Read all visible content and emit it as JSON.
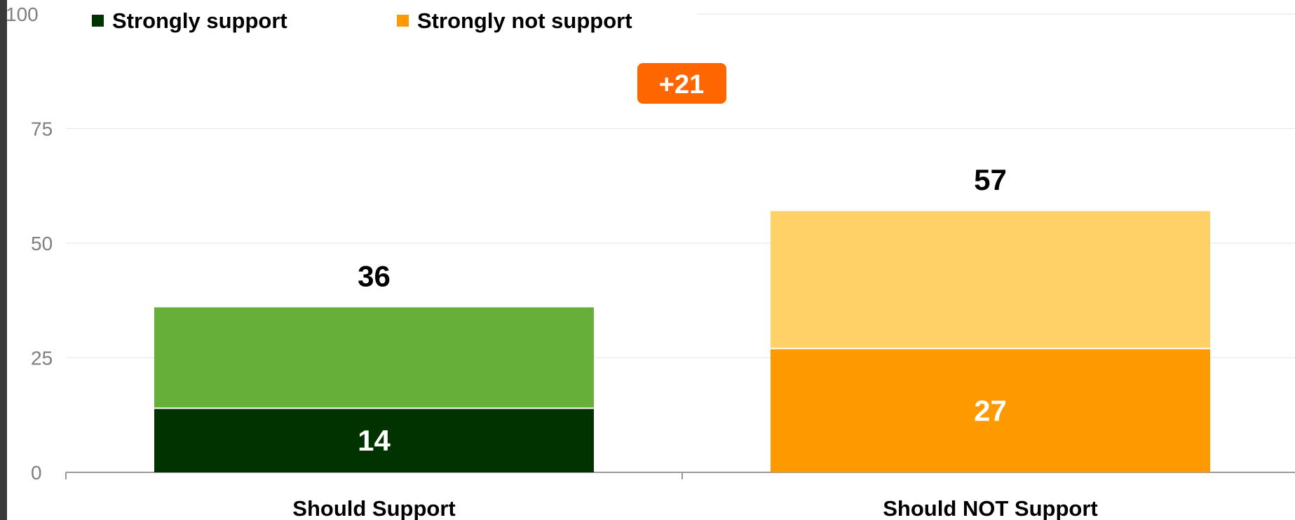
{
  "chart_data": {
    "type": "bar",
    "stacked": true,
    "categories": [
      "Should Support",
      "Should NOT Support"
    ],
    "totals": [
      36,
      57
    ],
    "strong_values": [
      14,
      27
    ],
    "strong_labels": [
      "14",
      "27"
    ],
    "total_labels": [
      "36",
      "57"
    ],
    "legend": [
      {
        "label": "Strongly support",
        "color": "#003300"
      },
      {
        "label": "Strongly not support",
        "color": "#ff9900"
      }
    ],
    "colors": {
      "support_strong": "#003300",
      "support_other": "#66b03a",
      "oppose_strong": "#ff9900",
      "oppose_other": "#ffd166",
      "difference_badge": "#ff6600"
    },
    "difference_label": "+21",
    "ylim": [
      0,
      100
    ],
    "yticks": [
      "0",
      "25",
      "50",
      "75",
      "100"
    ],
    "grid": true,
    "legend_position": "top-left",
    "title": "",
    "xlabel": "",
    "ylabel": ""
  }
}
